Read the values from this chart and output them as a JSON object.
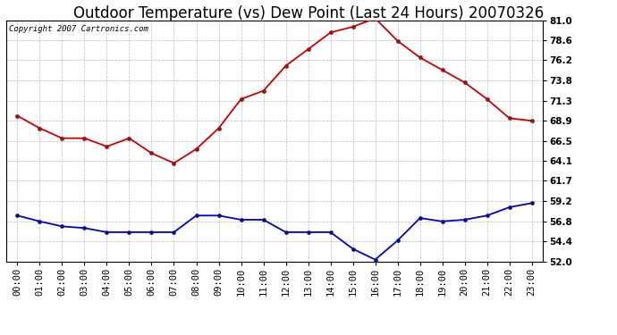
{
  "title": "Outdoor Temperature (vs) Dew Point (Last 24 Hours) 20070326",
  "copyright": "Copyright 2007 Cartronics.com",
  "hours": [
    "00:00",
    "01:00",
    "02:00",
    "03:00",
    "04:00",
    "05:00",
    "06:00",
    "07:00",
    "08:00",
    "09:00",
    "10:00",
    "11:00",
    "12:00",
    "13:00",
    "14:00",
    "15:00",
    "16:00",
    "17:00",
    "18:00",
    "19:00",
    "20:00",
    "21:00",
    "22:00",
    "23:00"
  ],
  "temp": [
    69.5,
    68.0,
    66.8,
    66.8,
    65.8,
    66.8,
    65.0,
    63.8,
    65.5,
    68.0,
    71.5,
    72.5,
    75.5,
    77.5,
    79.5,
    80.2,
    81.2,
    78.5,
    76.5,
    75.0,
    73.5,
    71.5,
    69.2,
    68.9
  ],
  "dew": [
    57.5,
    56.8,
    56.2,
    56.0,
    55.5,
    55.5,
    55.5,
    55.5,
    57.5,
    57.5,
    57.0,
    57.0,
    55.5,
    55.5,
    55.5,
    53.5,
    52.2,
    54.5,
    57.2,
    56.8,
    57.0,
    57.5,
    58.5,
    59.0
  ],
  "temp_color": "#cc0000",
  "dew_color": "#0000cc",
  "bg_color": "#ffffff",
  "grid_color": "#bbbbbb",
  "ymin": 52.0,
  "ymax": 81.0,
  "yticks": [
    52.0,
    54.4,
    56.8,
    59.2,
    61.7,
    64.1,
    66.5,
    68.9,
    71.3,
    73.8,
    76.2,
    78.6,
    81.0
  ],
  "title_fontsize": 12,
  "copyright_fontsize": 6.5,
  "tick_fontsize": 7.5,
  "markersize": 3.0,
  "linewidth": 1.3
}
